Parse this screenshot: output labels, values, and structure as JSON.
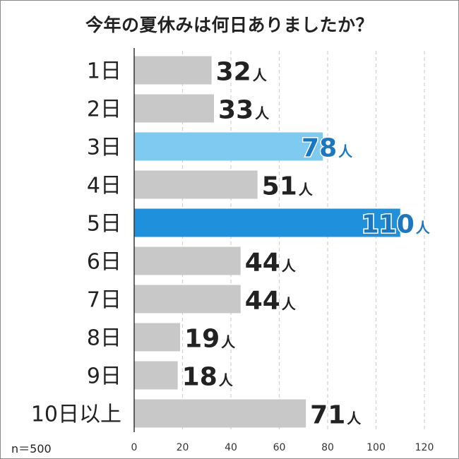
{
  "chart_data": {
    "type": "bar",
    "title": "今年の夏休みは何日ありましたか？",
    "categories": [
      "1日",
      "2日",
      "3日",
      "4日",
      "5日",
      "6日",
      "7日",
      "8日",
      "9日",
      "10日以上"
    ],
    "values": [
      32,
      33,
      78,
      51,
      110,
      44,
      44,
      19,
      18,
      71
    ],
    "value_unit": "人",
    "xlim": [
      0,
      120
    ],
    "xticks": [
      0,
      20,
      40,
      60,
      80,
      100,
      120
    ],
    "grid": true,
    "sample_note": "n＝500",
    "colors": {
      "default_bar": "#c8c8c8",
      "highlight_top": "#1e90dc",
      "highlight_second": "#7fcaf0",
      "default_label": "#222222",
      "highlight_label": "#1a78c2",
      "grid": "#d0d0d0",
      "axis": "#333333"
    }
  }
}
